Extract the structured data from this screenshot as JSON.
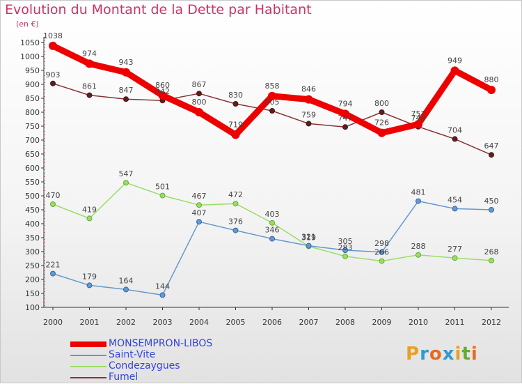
{
  "title": "Evolution du Montant de la Dette par Habitant",
  "unit": "(en €)",
  "brand": {
    "letters": [
      "P",
      "r",
      "o",
      "x",
      "i",
      "t",
      "i"
    ],
    "colors": [
      "#e8a020",
      "#3399cc",
      "#e86a20",
      "#3399cc",
      "#e8a020",
      "#66aa33",
      "#e86a20"
    ]
  },
  "chart_data": {
    "type": "line",
    "title": "Evolution du Montant de la Dette par Habitant",
    "ylabel": "(en €)",
    "x": [
      2000,
      2001,
      2002,
      2003,
      2004,
      2005,
      2006,
      2007,
      2008,
      2009,
      2010,
      2011,
      2012
    ],
    "ylim": [
      100,
      1050
    ],
    "yticks": [
      100,
      150,
      200,
      250,
      300,
      350,
      400,
      450,
      500,
      550,
      600,
      650,
      700,
      750,
      800,
      850,
      900,
      950,
      1000,
      1050
    ],
    "grid": false,
    "legend_position": "bottom",
    "series": [
      {
        "name": "MONSEMPRON-LIBOS",
        "color": "#ee0000",
        "width": 9,
        "values": [
          1038,
          974,
          943,
          860,
          800,
          719,
          858,
          846,
          794,
          726,
          757,
          949,
          880
        ],
        "labels": [
          "1038",
          "974",
          "943",
          "860",
          "800",
          "719",
          "858",
          "846",
          "794",
          "726",
          "757",
          "949",
          "880"
        ]
      },
      {
        "name": "Saint-Vite",
        "color": "#6699cc",
        "width": 1.5,
        "values": [
          221,
          179,
          164,
          144,
          407,
          376,
          346,
          321,
          305,
          298,
          481,
          454,
          450
        ],
        "labels": [
          "221",
          "179",
          "164",
          "144",
          "407",
          "376",
          "346",
          "321",
          "305",
          "298",
          "481",
          "454",
          "450"
        ]
      },
      {
        "name": "Condezaygues",
        "color": "#99dd66",
        "width": 1.5,
        "values": [
          470,
          419,
          547,
          501,
          467,
          472,
          403,
          319,
          283,
          266,
          288,
          277,
          268
        ],
        "labels": [
          "470",
          "419",
          "547",
          "501",
          "467",
          "472",
          "403",
          "319",
          "283",
          "266",
          "288",
          "277",
          "268"
        ]
      },
      {
        "name": "Fumel",
        "color": "#883333",
        "width": 1.5,
        "values": [
          903,
          861,
          847,
          842,
          867,
          830,
          805,
          759,
          747,
          800,
          748,
          704,
          647
        ],
        "labels": [
          "903",
          "861",
          "847",
          "842",
          "867",
          "830",
          "805",
          "759",
          "747",
          "800",
          "748",
          "704",
          "647"
        ]
      }
    ]
  }
}
